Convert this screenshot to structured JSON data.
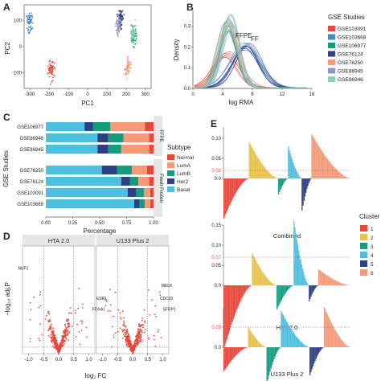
{
  "panels": {
    "A": {
      "letter": "A",
      "xlabel": "PC1",
      "ylabel": "PC2",
      "xticks": [
        "-300",
        "-200",
        "-100",
        "0",
        "100",
        "200",
        "300"
      ],
      "yticks": [
        "-100",
        "0",
        "100"
      ]
    },
    "B": {
      "letter": "B",
      "xlabel": "log RMA",
      "ylabel": "Density",
      "xticks": [
        "0",
        "4",
        "8",
        "12",
        "16"
      ],
      "yticks": [
        "0.0",
        "0.1",
        "0.2",
        "0.3"
      ],
      "annotations": [
        "FFPE",
        "FF"
      ]
    },
    "C": {
      "letter": "C",
      "xlabel": "Percentage",
      "ylabel": "GSE Studies",
      "xticks": [
        "0.00",
        "0.25",
        "0.50",
        "0.75",
        "1.00"
      ],
      "groups": [
        "FFPE",
        "Fresh Frozen"
      ]
    },
    "D": {
      "letter": "D",
      "xlabel": "log₂ FC",
      "ylabel": "−log₁₀ adj.P",
      "xticks": [
        "-1.0",
        "-0.5",
        "0.0",
        "0.5",
        "1.0"
      ]
    },
    "E": {
      "letter": "E",
      "subtitles": [
        "Combined",
        "HTA 2.0",
        "U133 Plus 2"
      ],
      "thresholds": [
        "0.02",
        "0.07",
        "0.05"
      ],
      "yticks": [
        "0.15",
        "0.10",
        "0.05",
        "0.0"
      ]
    }
  },
  "legend_gse": {
    "title": "GSE Studies",
    "items": [
      {
        "label": "GSE103091",
        "color": "#e8473c"
      },
      {
        "label": "GSE103668",
        "color": "#4a86c8"
      },
      {
        "label": "GSE106977",
        "color": "#169c7c"
      },
      {
        "label": "GSE76124",
        "color": "#2e3f84"
      },
      {
        "label": "GSE76250",
        "color": "#f29a7a"
      },
      {
        "label": "GSE86945",
        "color": "#8c94c8"
      },
      {
        "label": "GSE86946",
        "color": "#8fcfb5"
      }
    ]
  },
  "legend_subtype": {
    "title": "Subtype",
    "items": [
      {
        "label": "Normal",
        "color": "#e8473c"
      },
      {
        "label": "LumA",
        "color": "#f29a7a"
      },
      {
        "label": "LumB",
        "color": "#169c7c"
      },
      {
        "label": "Her2",
        "color": "#2e3f84"
      },
      {
        "label": "Basal",
        "color": "#4ec0de"
      }
    ]
  },
  "legend_cluster": {
    "title": "Cluster",
    "items": [
      {
        "label": "1",
        "color": "#e8473c"
      },
      {
        "label": "2",
        "color": "#e8c24e"
      },
      {
        "label": "3",
        "color": "#169c7c"
      },
      {
        "label": "4",
        "color": "#4ec0de"
      },
      {
        "label": "5",
        "color": "#2e3f84"
      },
      {
        "label": "6",
        "color": "#f29a7a"
      }
    ]
  },
  "chart_data": [
    {
      "type": "scatter",
      "panel": "A",
      "xlabel": "PC1",
      "ylabel": "PC2",
      "xlim": [
        -330,
        330
      ],
      "ylim": [
        -160,
        160
      ],
      "series": [
        {
          "name": "GSE103091",
          "color": "#e8473c",
          "center": [
            -190,
            -90
          ]
        },
        {
          "name": "GSE103668",
          "color": "#4a86c8",
          "center": [
            -300,
            90
          ]
        },
        {
          "name": "GSE106977",
          "color": "#169c7c",
          "center": [
            240,
            40
          ]
        },
        {
          "name": "GSE76124",
          "color": "#2e3f84",
          "center": [
            170,
            110
          ]
        },
        {
          "name": "GSE76250",
          "color": "#f29a7a",
          "center": [
            210,
            -80
          ]
        },
        {
          "name": "GSE86945",
          "color": "#8c94c8",
          "center": [
            160,
            80
          ]
        },
        {
          "name": "GSE86946",
          "color": "#8fcfb5",
          "center": [
            240,
            50
          ]
        }
      ]
    },
    {
      "type": "line",
      "panel": "B",
      "xlabel": "log RMA",
      "ylabel": "Density",
      "xlim": [
        0,
        16
      ],
      "ylim": [
        0,
        0.38
      ],
      "series": [
        {
          "name": "GSE103091",
          "color": "#e8473c",
          "mu": 4.5,
          "sd": 1.7,
          "peak": 0.16
        },
        {
          "name": "GSE103668",
          "color": "#4a86c8",
          "mu": 7.0,
          "sd": 1.9,
          "peak": 0.2
        },
        {
          "name": "GSE106977",
          "color": "#169c7c",
          "mu": 4.6,
          "sd": 1.2,
          "peak": 0.3
        },
        {
          "name": "GSE76124",
          "color": "#2e3f84",
          "mu": 7.3,
          "sd": 1.7,
          "peak": 0.2
        },
        {
          "name": "GSE76250",
          "color": "#f29a7a",
          "mu": 4.8,
          "sd": 1.3,
          "peak": 0.3
        },
        {
          "name": "GSE86945",
          "color": "#8c94c8",
          "mu": 5.0,
          "sd": 1.2,
          "peak": 0.33
        },
        {
          "name": "GSE86946",
          "color": "#8fcfb5",
          "mu": 4.9,
          "sd": 1.2,
          "peak": 0.32
        }
      ]
    },
    {
      "type": "bar",
      "panel": "C",
      "orientation": "horizontal",
      "stacked": true,
      "categories": [
        "GSE106977",
        "GSE86946",
        "GSE86945",
        "GSE76250",
        "GSE76124",
        "GSE103091",
        "GSE103668"
      ],
      "group_of": [
        "FFPE",
        "FFPE",
        "FFPE",
        "Fresh Frozen",
        "Fresh Frozen",
        "Fresh Frozen",
        "Fresh Frozen"
      ],
      "series": [
        {
          "name": "Basal",
          "color": "#4ec0de",
          "values": [
            0.36,
            0.48,
            0.48,
            0.52,
            0.7,
            0.76,
            0.82
          ]
        },
        {
          "name": "Her2",
          "color": "#2e3f84",
          "values": [
            0.08,
            0.1,
            0.1,
            0.14,
            0.08,
            0.08,
            0.05
          ]
        },
        {
          "name": "LumB",
          "color": "#169c7c",
          "values": [
            0.16,
            0.14,
            0.12,
            0.14,
            0.08,
            0.07,
            0.05
          ]
        },
        {
          "name": "LumA",
          "color": "#f29a7a",
          "values": [
            0.32,
            0.24,
            0.26,
            0.14,
            0.1,
            0.06,
            0.05
          ]
        },
        {
          "name": "Normal",
          "color": "#e8473c",
          "values": [
            0.08,
            0.04,
            0.04,
            0.06,
            0.04,
            0.03,
            0.03
          ]
        }
      ],
      "xlabel": "Percentage",
      "ylabel": "GSE Studies",
      "xlim": [
        0,
        1
      ]
    },
    {
      "type": "scatter",
      "panel": "D-left",
      "title": "HTA 2.0",
      "xlabel": "log₂ FC",
      "ylabel": "−log₁₀ adj.P",
      "xlim": [
        -1.2,
        1.2
      ],
      "labeled_points": [
        {
          "label": "NUF2",
          "x": -0.95,
          "y": 0.78
        }
      ]
    },
    {
      "type": "scatter",
      "panel": "D-right",
      "title": "U133 Plus 2",
      "xlabel": "log₂ FC",
      "xlim": [
        -1.2,
        1.2
      ],
      "labeled_points": [
        {
          "label": "MELK",
          "x": 0.9,
          "y": 0.62
        },
        {
          "label": "CDC20",
          "x": 0.85,
          "y": 0.5
        },
        {
          "label": "SFRP1",
          "x": 0.95,
          "y": 0.4
        },
        {
          "label": "ESR1",
          "x": -0.8,
          "y": 0.5
        },
        {
          "label": "FOXA1",
          "x": -0.85,
          "y": 0.4
        }
      ]
    },
    {
      "type": "bar",
      "panel": "E",
      "title": "Combined / HTA 2.0 / U133 Plus 2",
      "series": [
        {
          "name": "Combined",
          "threshold": 0.02,
          "clusters": [
            {
              "c": 1,
              "n": 26,
              "max": 0.1
            },
            {
              "c": 2,
              "n": 30,
              "max": 0.09
            },
            {
              "c": 3,
              "n": 10,
              "max": 0.04
            },
            {
              "c": 4,
              "n": 14,
              "max": 0.08
            },
            {
              "c": 5,
              "n": 10,
              "max": 0.08
            },
            {
              "c": 6,
              "n": 40,
              "max": 0.11
            }
          ]
        },
        {
          "name": "HTA 2.0",
          "threshold": 0.07,
          "clusters": [
            {
              "c": 1,
              "n": 30,
              "max": 0.16
            },
            {
              "c": 2,
              "n": 26,
              "max": 0.08
            },
            {
              "c": 3,
              "n": 18,
              "max": 0.06
            },
            {
              "c": 4,
              "n": 16,
              "max": 0.16
            },
            {
              "c": 5,
              "n": 10,
              "max": 0.04
            },
            {
              "c": 6,
              "n": 34,
              "max": 0.04
            }
          ]
        },
        {
          "name": "U133 Plus 2",
          "threshold": 0.05,
          "clusters": [
            {
              "c": 1,
              "n": 24,
              "max": 0.06
            },
            {
              "c": 2,
              "n": 18,
              "max": 0.05
            },
            {
              "c": 3,
              "n": 14,
              "max": 0.09
            },
            {
              "c": 4,
              "n": 28,
              "max": 0.09
            },
            {
              "c": 5,
              "n": 14,
              "max": 0.07
            },
            {
              "c": 6,
              "n": 26,
              "max": 0.1
            }
          ]
        }
      ]
    }
  ]
}
